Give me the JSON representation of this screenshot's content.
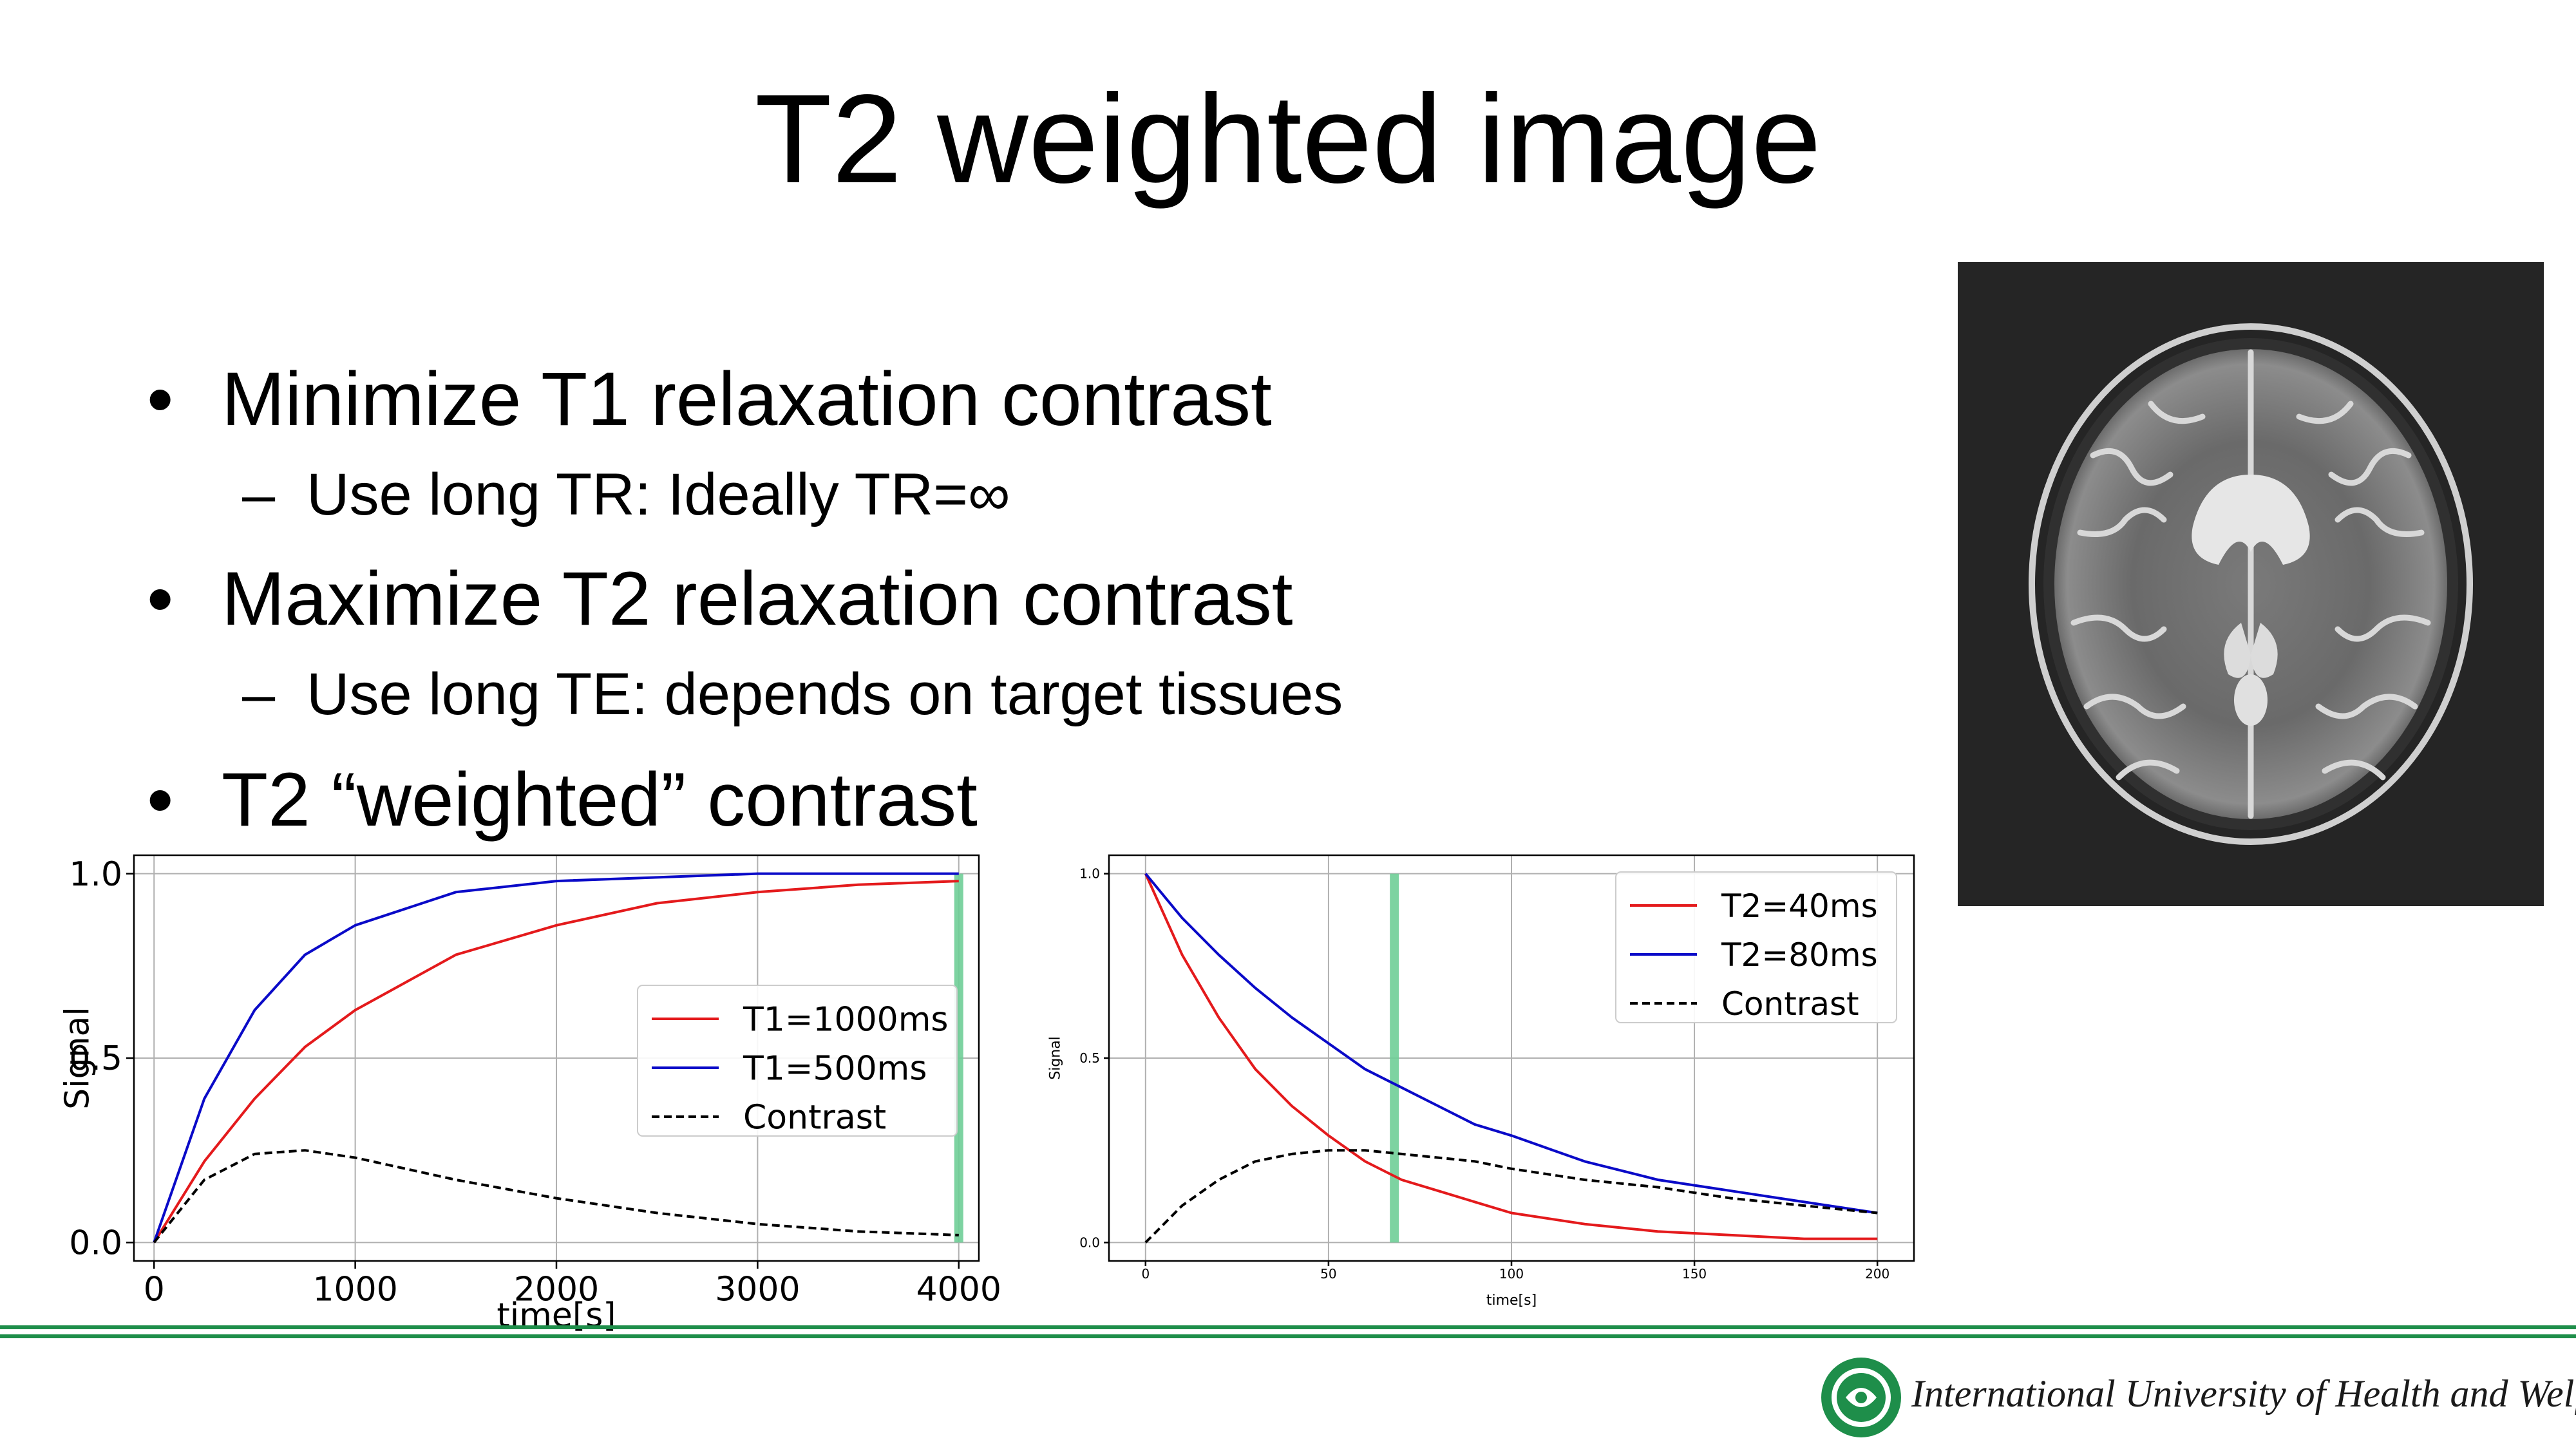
{
  "slide": {
    "title": "T2 weighted image",
    "bullets": [
      {
        "level": 1,
        "marker": "•",
        "text": "Minimize T1 relaxation contrast"
      },
      {
        "level": 2,
        "marker": "–",
        "text": "Use long TR: Ideally TR=∞"
      },
      {
        "level": 1,
        "marker": "•",
        "text": "Maximize T2 relaxation contrast"
      },
      {
        "level": 2,
        "marker": "–",
        "text": "Use long TE: depends on target tissues"
      },
      {
        "level": 1,
        "marker": "•",
        "text": "T2 “weighted” contrast"
      }
    ]
  },
  "chart_data": [
    {
      "type": "line",
      "xlabel": "time[s]",
      "ylabel": "Signal",
      "xlim": [
        -100,
        4100
      ],
      "ylim": [
        -0.05,
        1.05
      ],
      "xticks": [
        0,
        1000,
        2000,
        3000,
        4000
      ],
      "xtick_labels": [
        "0",
        "1000",
        "2000",
        "3000",
        "4000"
      ],
      "yticks": [
        0,
        0.5,
        1.0
      ],
      "ytick_labels": [
        "0.0",
        "0.5",
        "1.0"
      ],
      "grid": true,
      "legend_position": "center-right",
      "x": [
        0,
        250,
        500,
        750,
        1000,
        1500,
        2000,
        2500,
        3000,
        3500,
        4000
      ],
      "series": [
        {
          "name": "T1=1000ms",
          "color": "#e41a1c",
          "style": "solid",
          "values": [
            0,
            0.22,
            0.39,
            0.53,
            0.63,
            0.78,
            0.86,
            0.92,
            0.95,
            0.97,
            0.98
          ]
        },
        {
          "name": "T1=500ms",
          "color": "#0a0ac8",
          "style": "solid",
          "values": [
            0,
            0.39,
            0.63,
            0.78,
            0.86,
            0.95,
            0.98,
            0.99,
            1.0,
            1.0,
            1.0
          ]
        },
        {
          "name": "Contrast",
          "color": "#000000",
          "style": "dashed",
          "values": [
            0,
            0.17,
            0.24,
            0.25,
            0.23,
            0.17,
            0.12,
            0.08,
            0.05,
            0.03,
            0.02
          ]
        }
      ],
      "vline": {
        "x": 4000,
        "color": "#6fcf97"
      }
    },
    {
      "type": "line",
      "xlabel": "time[s]",
      "ylabel": "Signal",
      "xlim": [
        -10,
        210
      ],
      "ylim": [
        -0.05,
        1.05
      ],
      "xticks": [
        0,
        50,
        100,
        150,
        200
      ],
      "xtick_labels": [
        "0",
        "50",
        "100",
        "150",
        "200"
      ],
      "yticks": [
        0,
        0.5,
        1.0
      ],
      "ytick_labels": [
        "0.0",
        "0.5",
        "1.0"
      ],
      "grid": true,
      "legend_position": "top-right",
      "x": [
        0,
        10,
        20,
        30,
        40,
        50,
        60,
        70,
        80,
        90,
        100,
        120,
        140,
        160,
        180,
        200
      ],
      "series": [
        {
          "name": "T2=40ms",
          "color": "#e41a1c",
          "style": "solid",
          "values": [
            1.0,
            0.78,
            0.61,
            0.47,
            0.37,
            0.29,
            0.22,
            0.17,
            0.14,
            0.11,
            0.08,
            0.05,
            0.03,
            0.02,
            0.01,
            0.01
          ]
        },
        {
          "name": "T2=80ms",
          "color": "#0a0ac8",
          "style": "solid",
          "values": [
            1.0,
            0.88,
            0.78,
            0.69,
            0.61,
            0.54,
            0.47,
            0.42,
            0.37,
            0.32,
            0.29,
            0.22,
            0.17,
            0.14,
            0.11,
            0.08
          ]
        },
        {
          "name": "Contrast",
          "color": "#000000",
          "style": "dashed",
          "values": [
            0,
            0.1,
            0.17,
            0.22,
            0.24,
            0.25,
            0.25,
            0.24,
            0.23,
            0.22,
            0.2,
            0.17,
            0.15,
            0.12,
            0.1,
            0.08
          ]
        }
      ],
      "vline": {
        "x": 68,
        "color": "#6fcf97"
      }
    }
  ],
  "footer": {
    "organization": "International University of Health and Welfare",
    "brand_color": "#1e8e4a"
  }
}
